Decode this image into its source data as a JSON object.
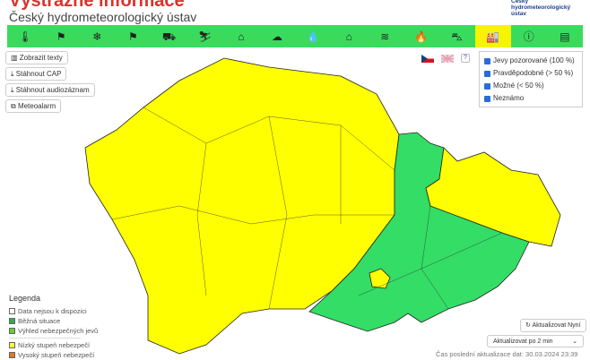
{
  "header": {
    "title": "Výstražné informace",
    "subtitle": "Český hydrometeorologický ústav",
    "logo_text": "Český hydrometeorologický ústav"
  },
  "nav": {
    "active_index": 14,
    "items": [
      {
        "icon": "thermometer-icon",
        "glyph": "🌡"
      },
      {
        "icon": "wind-icon",
        "glyph": "⚑"
      },
      {
        "icon": "snow-icon",
        "glyph": "❄"
      },
      {
        "icon": "snowstorm-icon",
        "glyph": "⚑"
      },
      {
        "icon": "road-ice-icon",
        "glyph": "⛟"
      },
      {
        "icon": "slippery-icon",
        "glyph": "⛷"
      },
      {
        "icon": "frost-icon",
        "glyph": "⌂"
      },
      {
        "icon": "thunderstorm-icon",
        "glyph": "☁"
      },
      {
        "icon": "rain-icon",
        "glyph": "💧"
      },
      {
        "icon": "flood-icon",
        "glyph": "⌂"
      },
      {
        "icon": "water-level-icon",
        "glyph": "≋"
      },
      {
        "icon": "fire-icon",
        "glyph": "🔥"
      },
      {
        "icon": "fog-icon",
        "glyph": "⛍"
      },
      {
        "icon": "smog-icon",
        "glyph": "🏭"
      },
      {
        "icon": "warning-icon",
        "glyph": "ⓘ"
      },
      {
        "icon": "document-icon",
        "glyph": "▤"
      }
    ]
  },
  "buttons": {
    "show_texts": "Zobrazit texty",
    "download_cap": "Stáhnout CAP",
    "download_audio": "Stáhnout audiozáznam",
    "meteoalarm": "Meteoalarm"
  },
  "help": "?",
  "filters": [
    {
      "label": "Jevy pozorované (100 %)",
      "checked": true
    },
    {
      "label": "Pravděpodobné (> 50 %)",
      "checked": true
    },
    {
      "label": "Možné (< 50 %)",
      "checked": true
    },
    {
      "label": "Neznámo",
      "checked": true
    }
  ],
  "map_colors": {
    "low": "#ffff00",
    "normal": "#33cc66"
  },
  "legend": {
    "title": "Legenda",
    "items": [
      {
        "label": "Data nejsou k dispozici",
        "color": "#ffffff"
      },
      {
        "label": "Běžná situace",
        "color": "#33aa55"
      },
      {
        "label": "Výhled nebezpečných jevů",
        "color": "#66cc33"
      },
      {
        "label": "Nízký stupeň nebezpečí",
        "color": "#ffff33"
      },
      {
        "label": "Vysoký stupeň nebezpečí",
        "color": "#dd7722"
      }
    ]
  },
  "refresh": {
    "button": "Aktualizovat Nyní",
    "interval": "Aktualizovat po 2 min",
    "last_update": "Čas poslední aktualizace dat: 30.03.2024 23:39"
  }
}
